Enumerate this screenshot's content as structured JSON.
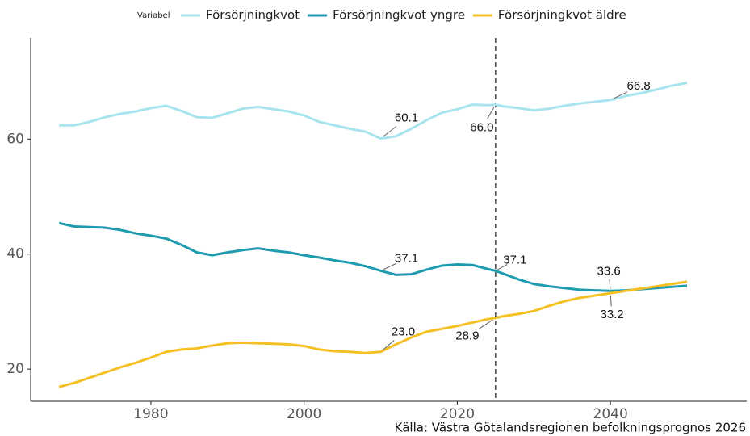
{
  "chart_data": {
    "type": "line",
    "legend_title": "Variabel",
    "caption": "Källa: Västra Götalandsregionen befolkningsprognos 2026",
    "x": [
      1968,
      1970,
      1972,
      1974,
      1976,
      1978,
      1980,
      1982,
      1984,
      1986,
      1988,
      1990,
      1992,
      1994,
      1996,
      1998,
      2000,
      2002,
      2004,
      2006,
      2008,
      2010,
      2012,
      2014,
      2016,
      2018,
      2020,
      2022,
      2024,
      2025,
      2026,
      2028,
      2030,
      2032,
      2034,
      2036,
      2038,
      2040,
      2042,
      2044,
      2046,
      2048,
      2050
    ],
    "series": [
      {
        "name": "Försörjningkvot",
        "color": "#a8e4ee",
        "values": [
          62.4,
          62.4,
          63.0,
          63.8,
          64.4,
          64.8,
          65.4,
          65.8,
          64.9,
          63.8,
          63.7,
          64.5,
          65.3,
          65.6,
          65.2,
          64.8,
          64.1,
          63.0,
          62.4,
          61.8,
          61.3,
          60.1,
          60.5,
          61.8,
          63.3,
          64.6,
          65.2,
          66.0,
          65.9,
          66.0,
          65.7,
          65.4,
          65.0,
          65.3,
          65.8,
          66.2,
          66.5,
          66.8,
          67.5,
          68.0,
          68.6,
          69.3,
          69.8
        ],
        "value_labels": [
          null,
          null,
          null,
          null,
          null,
          null,
          null,
          null,
          null,
          null,
          null,
          null,
          null,
          null,
          null,
          null,
          null,
          null,
          null,
          null,
          null,
          "60.1",
          null,
          null,
          null,
          null,
          null,
          null,
          null,
          "66.0",
          null,
          null,
          null,
          null,
          null,
          null,
          null,
          "66.8",
          null,
          null,
          null,
          null,
          null
        ]
      },
      {
        "name": "Försörjningkvot yngre",
        "color": "#1f9bb0",
        "values": [
          45.4,
          44.8,
          44.7,
          44.6,
          44.2,
          43.6,
          43.2,
          42.7,
          41.6,
          40.3,
          39.8,
          40.3,
          40.7,
          41.0,
          40.6,
          40.3,
          39.8,
          39.4,
          38.9,
          38.5,
          37.9,
          37.1,
          36.4,
          36.5,
          37.3,
          38.0,
          38.2,
          38.1,
          37.4,
          37.1,
          36.6,
          35.6,
          34.8,
          34.4,
          34.1,
          33.8,
          33.7,
          33.6,
          33.7,
          33.9,
          34.1,
          34.3,
          34.5
        ],
        "value_labels": [
          null,
          null,
          null,
          null,
          null,
          null,
          null,
          null,
          null,
          null,
          null,
          null,
          null,
          null,
          null,
          null,
          null,
          null,
          null,
          null,
          null,
          "37.1",
          null,
          null,
          null,
          null,
          null,
          null,
          null,
          "37.1",
          null,
          null,
          null,
          null,
          null,
          null,
          null,
          "33.6",
          null,
          null,
          null,
          null,
          null
        ]
      },
      {
        "name": "Försörjningkvot äldre",
        "color": "#f5c023",
        "values": [
          16.9,
          17.6,
          18.5,
          19.4,
          20.3,
          21.1,
          22.0,
          23.0,
          23.4,
          23.6,
          24.1,
          24.5,
          24.6,
          24.5,
          24.4,
          24.3,
          24.0,
          23.4,
          23.1,
          23.0,
          22.8,
          23.0,
          24.3,
          25.5,
          26.5,
          27.0,
          27.5,
          28.1,
          28.7,
          28.9,
          29.2,
          29.6,
          30.1,
          31.0,
          31.8,
          32.4,
          32.8,
          33.2,
          33.6,
          34.0,
          34.4,
          34.8,
          35.2
        ],
        "value_labels": [
          null,
          null,
          null,
          null,
          null,
          null,
          null,
          null,
          null,
          null,
          null,
          null,
          null,
          null,
          null,
          null,
          null,
          null,
          null,
          null,
          null,
          "23.0",
          null,
          null,
          null,
          null,
          null,
          null,
          null,
          "28.9",
          null,
          null,
          null,
          null,
          null,
          null,
          null,
          "33.2",
          null,
          null,
          null,
          null,
          null
        ]
      }
    ],
    "vline": 2025,
    "xlim": [
      1964.3,
      2057.8
    ],
    "ylim": [
      14.4,
      77.6
    ],
    "xticks": [
      1980,
      2000,
      2020,
      2040
    ],
    "yticks": [
      20,
      40,
      60
    ]
  }
}
